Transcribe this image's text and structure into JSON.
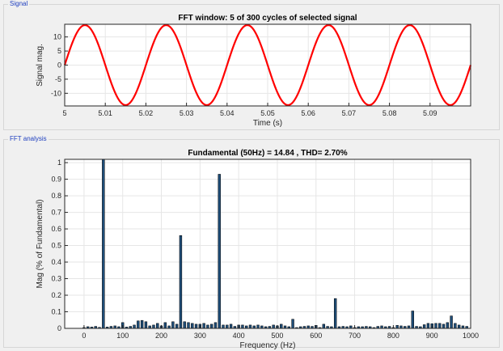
{
  "panels": {
    "signal_label": "Signal",
    "fft_label": "FFT analysis"
  },
  "colors": {
    "signal_line": "#ff0000",
    "bar_fill": "#1f4e79",
    "axes_bg": "#ffffff",
    "grid": "#e6e6e6",
    "panel_title": "#1f3fbf"
  },
  "chart_data": [
    {
      "type": "line",
      "title": "FFT window: 5 of 300 cycles of selected signal",
      "xlabel": "Time (s)",
      "ylabel": "Signal mag.",
      "xlim": [
        5.0,
        5.1
      ],
      "ylim": [
        -14.5,
        14.5
      ],
      "xticks": [
        5,
        5.01,
        5.02,
        5.03,
        5.04,
        5.05,
        5.06,
        5.07,
        5.08,
        5.09
      ],
      "xtick_labels": [
        "5",
        "5.01",
        "5.02",
        "5.03",
        "5.04",
        "5.05",
        "5.06",
        "5.07",
        "5.08",
        "5.09"
      ],
      "yticks": [
        -10,
        -5,
        0,
        5,
        10
      ],
      "ytick_labels": [
        "-10",
        "-5",
        "0",
        "5",
        "10"
      ],
      "grid": true,
      "series": [
        {
          "amplitude": 14.2,
          "frequency_hz": 50,
          "phase_deg": 0,
          "t_start": 5.0,
          "t_end": 5.1
        }
      ]
    },
    {
      "type": "bar",
      "title": "Fundamental (50Hz) = 14.84 , THD= 2.70%",
      "xlabel": "Frequency (Hz)",
      "ylabel": "Mag (% of Fundamental)",
      "xlim": [
        -50,
        1000
      ],
      "ylim": [
        0,
        1.02
      ],
      "xticks": [
        0,
        100,
        200,
        300,
        400,
        500,
        600,
        700,
        800,
        900,
        1000
      ],
      "xtick_labels": [
        "0",
        "100",
        "200",
        "300",
        "400",
        "500",
        "600",
        "700",
        "800",
        "900",
        "1000"
      ],
      "yticks": [
        0,
        0.1,
        0.2,
        0.3,
        0.4,
        0.5,
        0.6,
        0.7,
        0.8,
        0.9,
        1
      ],
      "ytick_labels": [
        "0",
        "0.1",
        "0.2",
        "0.3",
        "0.4",
        "0.5",
        "0.6",
        "0.7",
        "0.8",
        "0.9",
        "1"
      ],
      "grid": true,
      "bar_spacing_hz": 10,
      "x_start": 0,
      "values": [
        0.005,
        0.01,
        0.008,
        0.012,
        0.006,
        1.02,
        0.008,
        0.012,
        0.015,
        0.01,
        0.035,
        0.008,
        0.012,
        0.02,
        0.045,
        0.048,
        0.04,
        0.015,
        0.02,
        0.03,
        0.015,
        0.035,
        0.015,
        0.04,
        0.025,
        0.56,
        0.04,
        0.035,
        0.03,
        0.025,
        0.025,
        0.03,
        0.02,
        0.025,
        0.035,
        0.93,
        0.02,
        0.02,
        0.025,
        0.012,
        0.02,
        0.02,
        0.015,
        0.02,
        0.015,
        0.02,
        0.015,
        0.01,
        0.012,
        0.02,
        0.015,
        0.025,
        0.015,
        0.01,
        0.055,
        0.005,
        0.01,
        0.012,
        0.015,
        0.012,
        0.018,
        0.005,
        0.025,
        0.012,
        0.01,
        0.18,
        0.01,
        0.012,
        0.01,
        0.015,
        0.005,
        0.01,
        0.01,
        0.012,
        0.01,
        0.005,
        0.012,
        0.015,
        0.01,
        0.012,
        0.005,
        0.018,
        0.015,
        0.012,
        0.015,
        0.105,
        0.012,
        0.01,
        0.022,
        0.03,
        0.028,
        0.03,
        0.03,
        0.025,
        0.035,
        0.075,
        0.03,
        0.02,
        0.015,
        0.012
      ]
    }
  ]
}
